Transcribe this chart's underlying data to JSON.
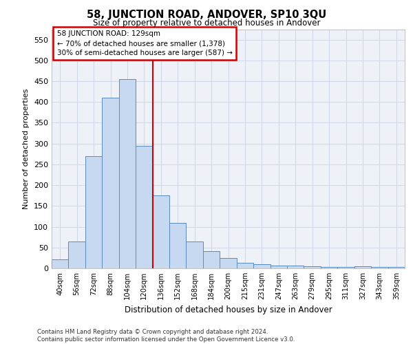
{
  "title": "58, JUNCTION ROAD, ANDOVER, SP10 3QU",
  "subtitle": "Size of property relative to detached houses in Andover",
  "xlabel": "Distribution of detached houses by size in Andover",
  "ylabel": "Number of detached properties",
  "footnote": "Contains HM Land Registry data © Crown copyright and database right 2024.\nContains public sector information licensed under the Open Government Licence v3.0.",
  "bar_labels": [
    "40sqm",
    "56sqm",
    "72sqm",
    "88sqm",
    "104sqm",
    "120sqm",
    "136sqm",
    "152sqm",
    "168sqm",
    "184sqm",
    "200sqm",
    "215sqm",
    "231sqm",
    "247sqm",
    "263sqm",
    "279sqm",
    "295sqm",
    "311sqm",
    "327sqm",
    "343sqm",
    "359sqm"
  ],
  "bar_values": [
    22,
    65,
    270,
    410,
    455,
    295,
    175,
    110,
    65,
    42,
    25,
    14,
    10,
    7,
    7,
    5,
    4,
    3,
    5,
    3,
    3
  ],
  "bar_color": "#c6d9f0",
  "bar_edge_color": "#5a8abf",
  "grid_color": "#d0d8e8",
  "background_color": "#eef2f8",
  "annotation_line1": "58 JUNCTION ROAD: 129sqm",
  "annotation_line2": "← 70% of detached houses are smaller (1,378)",
  "annotation_line3": "30% of semi-detached houses are larger (587) →",
  "annotation_box_color": "#ffffff",
  "annotation_box_edge_color": "#cc0000",
  "vline_x": 5.5,
  "vline_color": "#cc0000",
  "ylim": [
    0,
    575
  ],
  "yticks": [
    0,
    50,
    100,
    150,
    200,
    250,
    300,
    350,
    400,
    450,
    500,
    550
  ]
}
